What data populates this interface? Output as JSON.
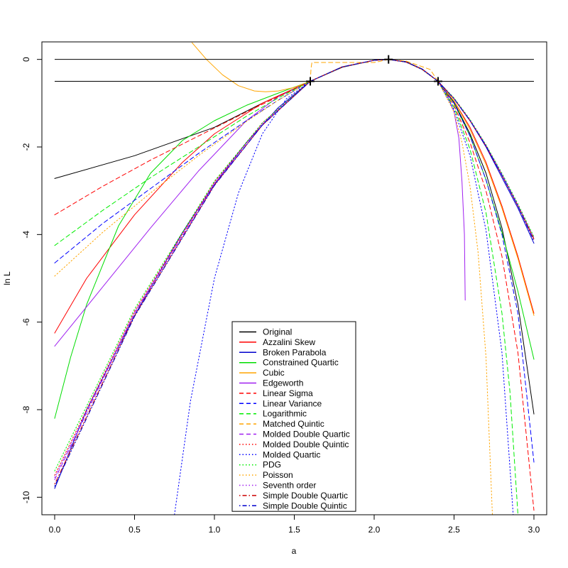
{
  "chart_data": {
    "type": "line",
    "title": "",
    "xlabel": "a",
    "ylabel": "ln L",
    "xlim": [
      -0.08,
      3.08
    ],
    "ylim": [
      -10.4,
      0.4
    ],
    "x_ticks": [
      "0.0",
      "0.5",
      "1.0",
      "1.5",
      "2.0",
      "2.5",
      "3.0"
    ],
    "y_ticks": [
      "0",
      "-2",
      "-4",
      "-6",
      "-8",
      "-10"
    ],
    "grid": false,
    "legend_position": "bottom-center",
    "reference_lines": [
      0,
      -0.5
    ],
    "markers": [
      {
        "x": 1.6,
        "y": -0.5
      },
      {
        "x": 2.09,
        "y": 0
      },
      {
        "x": 2.4,
        "y": -0.5
      }
    ],
    "series": [
      {
        "name": "Original",
        "color": "#000000",
        "dash": "solid",
        "x": [
          0,
          0.5,
          1.0,
          1.3,
          1.6,
          1.8,
          2.0,
          2.09,
          2.2,
          2.3,
          2.4,
          2.5,
          2.6,
          2.7,
          2.8,
          2.9,
          3.0
        ],
        "y": [
          -2.72,
          -2.2,
          -1.55,
          -1.0,
          -0.5,
          -0.18,
          -0.02,
          0,
          -0.05,
          -0.22,
          -0.5,
          -0.98,
          -1.7,
          -2.6,
          -3.85,
          -5.6,
          -8.1
        ]
      },
      {
        "name": "Azzalini Skew",
        "color": "#ff0000",
        "dash": "solid",
        "x": [
          0,
          0.2,
          0.5,
          0.8,
          1.0,
          1.3,
          1.6,
          1.8,
          2.0,
          2.09,
          2.2,
          2.3,
          2.4,
          2.5,
          2.6,
          2.7,
          2.8,
          2.9,
          3.0
        ],
        "y": [
          -6.25,
          -5.0,
          -3.55,
          -2.35,
          -1.7,
          -1.0,
          -0.5,
          -0.17,
          -0.02,
          0,
          -0.06,
          -0.23,
          -0.5,
          -0.95,
          -1.55,
          -2.35,
          -3.35,
          -4.5,
          -5.8
        ]
      },
      {
        "name": "Broken Parabola",
        "color": "#0000cc",
        "dash": "solid",
        "x": [
          0,
          0.2,
          0.5,
          0.8,
          1.0,
          1.2,
          1.4,
          1.6,
          1.8,
          2.0,
          2.09,
          2.2,
          2.3,
          2.4,
          2.5,
          2.6,
          2.7,
          2.8,
          2.9,
          3.0
        ],
        "y": [
          -9.8,
          -8.0,
          -5.85,
          -3.95,
          -2.85,
          -1.9,
          -1.1,
          -0.5,
          -0.17,
          -0.02,
          0,
          -0.06,
          -0.22,
          -0.5,
          -0.9,
          -1.4,
          -2.0,
          -2.7,
          -3.4,
          -4.2
        ]
      },
      {
        "name": "Constrained Quartic",
        "color": "#00dd00",
        "dash": "solid",
        "x": [
          0,
          0.1,
          0.2,
          0.4,
          0.6,
          0.8,
          1.0,
          1.2,
          1.4,
          1.6,
          1.8,
          2.0,
          2.09,
          2.2,
          2.3,
          2.4,
          2.5,
          2.6,
          2.7,
          2.8,
          2.9,
          3.0
        ],
        "y": [
          -8.2,
          -6.8,
          -5.6,
          -3.8,
          -2.6,
          -1.85,
          -1.4,
          -1.05,
          -0.77,
          -0.5,
          -0.17,
          -0.02,
          0,
          -0.06,
          -0.23,
          -0.5,
          -1.0,
          -1.75,
          -2.75,
          -3.95,
          -5.3,
          -6.85
        ]
      },
      {
        "name": "Cubic",
        "color": "#ffa500",
        "dash": "solid",
        "x": [
          0.86,
          0.95,
          1.05,
          1.15,
          1.25,
          1.32,
          1.4,
          1.5,
          1.6,
          1.8,
          2.0,
          2.09,
          2.2,
          2.3,
          2.4,
          2.5,
          2.6,
          2.7,
          2.8,
          2.9,
          3.0
        ],
        "y": [
          0.38,
          0.0,
          -0.35,
          -0.6,
          -0.72,
          -0.74,
          -0.72,
          -0.64,
          -0.5,
          -0.17,
          -0.02,
          0,
          -0.06,
          -0.23,
          -0.5,
          -0.95,
          -1.6,
          -2.4,
          -3.4,
          -4.55,
          -5.85
        ]
      },
      {
        "name": "Edgeworth",
        "color": "#a020f0",
        "dash": "solid",
        "x": [
          0,
          0.3,
          0.6,
          0.9,
          1.2,
          1.4,
          1.6,
          1.8,
          2.0,
          2.09,
          2.2,
          2.3,
          2.4,
          2.45,
          2.5,
          2.53,
          2.55,
          2.565,
          2.57
        ],
        "y": [
          -6.55,
          -5.2,
          -3.85,
          -2.55,
          -1.4,
          -0.85,
          -0.5,
          -0.17,
          -0.02,
          0,
          -0.06,
          -0.23,
          -0.5,
          -0.75,
          -1.2,
          -1.8,
          -2.8,
          -4.0,
          -5.5
        ]
      },
      {
        "name": "Linear Sigma",
        "color": "#ff0000",
        "dash": "dashed",
        "x": [
          0,
          0.3,
          0.6,
          0.9,
          1.2,
          1.4,
          1.6,
          1.8,
          2.0,
          2.09,
          2.2,
          2.3,
          2.4,
          2.5,
          2.6,
          2.7,
          2.8,
          2.9,
          3.0
        ],
        "y": [
          -3.55,
          -2.9,
          -2.3,
          -1.75,
          -1.2,
          -0.85,
          -0.5,
          -0.17,
          -0.02,
          0,
          -0.06,
          -0.23,
          -0.5,
          -1.05,
          -1.9,
          -3.0,
          -4.5,
          -6.7,
          -10.3
        ]
      },
      {
        "name": "Linear Variance",
        "color": "#0000ff",
        "dash": "dashed",
        "x": [
          0,
          0.3,
          0.6,
          0.9,
          1.2,
          1.4,
          1.6,
          1.8,
          2.0,
          2.09,
          2.2,
          2.3,
          2.4,
          2.5,
          2.6,
          2.7,
          2.8,
          2.9,
          3.0
        ],
        "y": [
          -4.65,
          -3.75,
          -2.95,
          -2.15,
          -1.4,
          -0.93,
          -0.5,
          -0.17,
          -0.02,
          0,
          -0.06,
          -0.23,
          -0.5,
          -1.0,
          -1.75,
          -2.75,
          -4.0,
          -5.8,
          -9.2
        ]
      },
      {
        "name": "Logarithmic",
        "color": "#00ee00",
        "dash": "dashed",
        "x": [
          0,
          0.3,
          0.6,
          0.9,
          1.2,
          1.4,
          1.6,
          1.8,
          2.0,
          2.09,
          2.2,
          2.3,
          2.4,
          2.5,
          2.6,
          2.7,
          2.8,
          2.85,
          2.9
        ],
        "y": [
          -4.25,
          -3.45,
          -2.7,
          -2.0,
          -1.3,
          -0.88,
          -0.5,
          -0.17,
          -0.02,
          0,
          -0.06,
          -0.23,
          -0.5,
          -1.1,
          -2.05,
          -3.5,
          -5.8,
          -7.6,
          -10.4
        ]
      },
      {
        "name": "Matched Quintic",
        "color": "#ffa500",
        "dash": "dashed",
        "x": [
          1.6,
          1.605,
          1.61,
          1.65,
          1.8,
          2.0,
          2.09,
          2.2,
          2.35,
          2.4
        ],
        "y": [
          -0.5,
          -0.2,
          -0.07,
          -0.07,
          -0.07,
          -0.07,
          0,
          -0.04,
          -0.23,
          -0.5
        ]
      },
      {
        "name": "Molded Double Quartic",
        "color": "#a020f0",
        "dash": "dashed",
        "x": [
          0,
          0.5,
          1.0,
          1.3,
          1.6,
          1.8,
          2.0,
          2.09,
          2.2,
          2.3,
          2.4,
          2.5,
          2.6,
          2.7,
          2.8,
          2.9,
          3.0
        ],
        "y": [
          -9.6,
          -5.8,
          -2.85,
          -1.5,
          -0.5,
          -0.17,
          -0.02,
          0,
          -0.06,
          -0.22,
          -0.5,
          -0.9,
          -1.4,
          -1.98,
          -2.65,
          -3.35,
          -4.1
        ]
      },
      {
        "name": "Molded Double Quintic",
        "color": "#ff0000",
        "dash": "dotted",
        "x": [
          0,
          0.5,
          1.0,
          1.3,
          1.6,
          1.8,
          2.0,
          2.09,
          2.2,
          2.3,
          2.4,
          2.5,
          2.6,
          2.7,
          2.8,
          2.9,
          3.0
        ],
        "y": [
          -9.5,
          -5.75,
          -2.8,
          -1.45,
          -0.5,
          -0.17,
          -0.02,
          0,
          -0.06,
          -0.22,
          -0.5,
          -0.9,
          -1.4,
          -1.98,
          -2.65,
          -3.35,
          -4.1
        ]
      },
      {
        "name": "Molded Quartic",
        "color": "#0000ff",
        "dash": "dotted",
        "x": [
          0.75,
          0.85,
          1.0,
          1.15,
          1.3,
          1.45,
          1.6,
          1.8,
          2.0,
          2.09,
          2.2,
          2.3,
          2.4,
          2.5,
          2.6,
          2.7,
          2.8,
          2.87
        ],
        "y": [
          -10.4,
          -7.8,
          -5.0,
          -3.05,
          -1.7,
          -0.9,
          -0.5,
          -0.17,
          -0.02,
          0,
          -0.06,
          -0.23,
          -0.5,
          -1.15,
          -2.2,
          -3.9,
          -6.7,
          -10.4
        ]
      },
      {
        "name": "PDG",
        "color": "#00ee00",
        "dash": "dotted",
        "x": [
          0,
          0.5,
          1.0,
          1.3,
          1.6,
          1.8,
          2.0,
          2.09,
          2.2,
          2.3,
          2.4,
          2.5,
          2.6,
          2.7,
          2.8,
          2.9,
          3.0
        ],
        "y": [
          -9.4,
          -5.7,
          -2.78,
          -1.45,
          -0.5,
          -0.17,
          -0.02,
          0,
          -0.06,
          -0.22,
          -0.5,
          -0.88,
          -1.37,
          -1.95,
          -2.6,
          -3.3,
          -4.05
        ]
      },
      {
        "name": "Poisson",
        "color": "#ffa500",
        "dash": "dotted",
        "x": [
          0,
          0.3,
          0.6,
          0.9,
          1.2,
          1.4,
          1.6,
          1.8,
          2.0,
          2.09,
          2.2,
          2.3,
          2.4,
          2.5,
          2.55,
          2.6,
          2.65,
          2.7,
          2.74
        ],
        "y": [
          -4.95,
          -3.95,
          -3.05,
          -2.2,
          -1.42,
          -0.93,
          -0.5,
          -0.17,
          -0.02,
          0,
          -0.06,
          -0.23,
          -0.5,
          -1.2,
          -1.9,
          -2.9,
          -4.4,
          -6.8,
          -10.4
        ]
      },
      {
        "name": "Seventh order",
        "color": "#a020f0",
        "dash": "dotted",
        "x": [
          0,
          0.5,
          1.0,
          1.3,
          1.6,
          1.8,
          2.0,
          2.09,
          2.2,
          2.3,
          2.4,
          2.5,
          2.6,
          2.7,
          2.8,
          2.9,
          3.0
        ],
        "y": [
          -9.55,
          -5.78,
          -2.82,
          -1.47,
          -0.5,
          -0.17,
          -0.02,
          0,
          -0.06,
          -0.22,
          -0.5,
          -0.89,
          -1.38,
          -1.96,
          -2.62,
          -3.32,
          -4.08
        ]
      },
      {
        "name": "Simple Double Quartic",
        "color": "#cc0000",
        "dash": "dotdash",
        "x": [
          0,
          0.5,
          1.0,
          1.3,
          1.6,
          1.8,
          2.0,
          2.09,
          2.2,
          2.3,
          2.4,
          2.5,
          2.6,
          2.7,
          2.8,
          2.9,
          3.0
        ],
        "y": [
          -9.7,
          -5.85,
          -2.87,
          -1.5,
          -0.5,
          -0.17,
          -0.02,
          0,
          -0.06,
          -0.22,
          -0.5,
          -0.9,
          -1.4,
          -1.98,
          -2.65,
          -3.35,
          -4.1
        ]
      },
      {
        "name": "Simple Double Quintic",
        "color": "#0000cc",
        "dash": "dotdash",
        "x": [
          0,
          0.5,
          1.0,
          1.3,
          1.6,
          1.8,
          2.0,
          2.09,
          2.2,
          2.3,
          2.4,
          2.5,
          2.6,
          2.7,
          2.8,
          2.9,
          3.0
        ],
        "y": [
          -9.75,
          -5.87,
          -2.88,
          -1.5,
          -0.5,
          -0.17,
          -0.02,
          0,
          -0.06,
          -0.22,
          -0.5,
          -0.9,
          -1.4,
          -1.98,
          -2.65,
          -3.35,
          -4.15
        ]
      }
    ]
  }
}
